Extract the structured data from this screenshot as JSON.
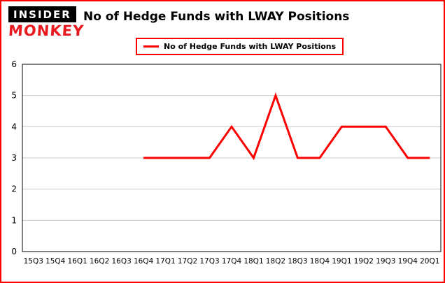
{
  "header": {
    "logo_top": "INSIDER",
    "logo_bottom": "MONKEY",
    "title": "No of Hedge Funds with LWAY Positions"
  },
  "legend": {
    "label": "No of Hedge Funds with LWAY Positions"
  },
  "chart_data": {
    "type": "line",
    "title": "No of Hedge Funds with LWAY Positions",
    "categories": [
      "15Q3",
      "15Q4",
      "16Q1",
      "16Q2",
      "16Q3",
      "16Q4",
      "17Q1",
      "17Q2",
      "17Q3",
      "17Q4",
      "18Q1",
      "18Q2",
      "18Q3",
      "18Q4",
      "19Q1",
      "19Q2",
      "19Q3",
      "19Q4",
      "20Q1"
    ],
    "series": [
      {
        "name": "No of Hedge Funds with LWAY Positions",
        "color": "#fe0000",
        "values": [
          null,
          null,
          null,
          null,
          null,
          3,
          3,
          3,
          3,
          4,
          3,
          5,
          3,
          3,
          4,
          4,
          4,
          3,
          3
        ]
      }
    ],
    "ylim": [
      0,
      6
    ],
    "yticks": [
      0,
      1,
      2,
      3,
      4,
      5,
      6
    ],
    "grid": "horizontal",
    "legend_position": "top"
  },
  "colors": {
    "line": "#fe0000",
    "page_border": "#fe0000",
    "grid": "#c8c8c8",
    "plot_border": "#000000",
    "text": "#000000"
  }
}
